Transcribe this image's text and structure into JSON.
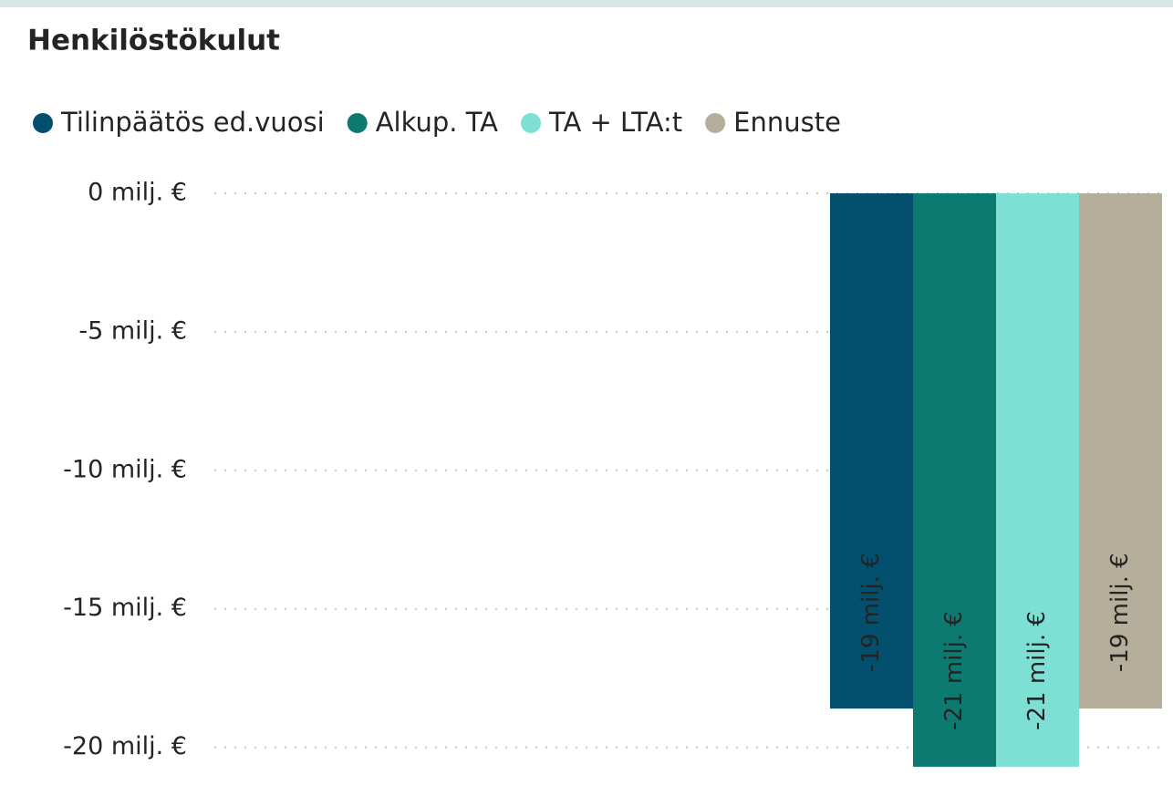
{
  "chart_data": {
    "type": "bar",
    "title": "Henkilöstökulut",
    "categories": [
      null
    ],
    "series": [
      {
        "name": "Tilinpäätös ed.vuosi",
        "color": "#034f6e",
        "values": [
          -18.6
        ],
        "value_labels": [
          "-19 milj. €"
        ]
      },
      {
        "name": "Alkup. TA",
        "color": "#0d7a72",
        "values": [
          -20.7
        ],
        "value_labels": [
          "-21 milj. €"
        ]
      },
      {
        "name": "TA + LTA:t",
        "color": "#7ee0d4",
        "values": [
          -20.7
        ],
        "value_labels": [
          "-21 milj. €"
        ]
      },
      {
        "name": "Ennuste",
        "color": "#b4ae9b",
        "values": [
          -18.6
        ],
        "value_labels": [
          "-19 milj. €"
        ]
      }
    ],
    "ylim": [
      -21,
      0
    ],
    "yticks": [
      {
        "value": 0,
        "label": "0 milj. €"
      },
      {
        "value": -5,
        "label": "-5 milj. €"
      },
      {
        "value": -10,
        "label": "-10 milj. €"
      },
      {
        "value": -15,
        "label": "-15 milj. €"
      },
      {
        "value": -20,
        "label": "-20 milj. €"
      }
    ],
    "grid": true,
    "legend": "top"
  }
}
